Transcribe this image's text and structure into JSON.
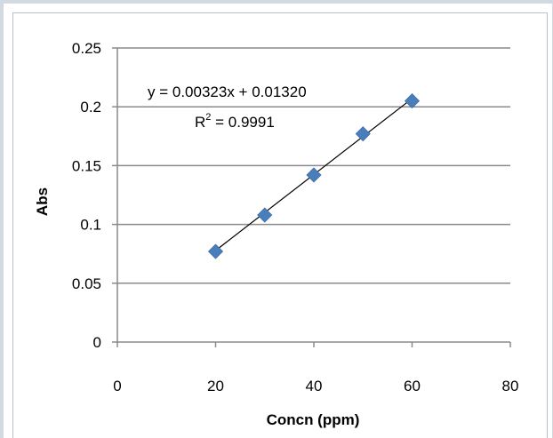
{
  "chart_data": {
    "type": "scatter",
    "xlabel": "Concn (ppm)",
    "ylabel": "Abs",
    "xlim": [
      0,
      80
    ],
    "ylim": [
      0,
      0.25
    ],
    "xticks": [
      "0",
      "20",
      "40",
      "60",
      "80"
    ],
    "yticks": [
      "0",
      "0.05",
      "0.1",
      "0.15",
      "0.2",
      "0.25"
    ],
    "grid": "horizontal major gridlines",
    "legend": "none",
    "series": [
      {
        "x": [
          20,
          30,
          40,
          50,
          60
        ],
        "y": [
          0.077,
          0.108,
          0.142,
          0.177,
          0.205
        ],
        "marker": "diamond",
        "color": "#4a7ebb"
      }
    ],
    "trendline": {
      "type": "linear",
      "slope": 0.00323,
      "intercept": 0.0132,
      "x_range": [
        20,
        60
      ],
      "color": "#000000"
    },
    "annotations": {
      "equation": "y = 0.00323x + 0.01320",
      "r2_prefix": "R",
      "r2_sup": "2",
      "r2_value": " = 0.9991"
    }
  }
}
